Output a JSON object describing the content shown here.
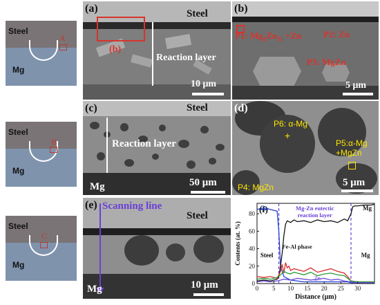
{
  "schematics": [
    {
      "steel": "Steel",
      "mg": "Mg",
      "point": "A"
    },
    {
      "steel": "Steel",
      "mg": "Mg",
      "point": "B"
    },
    {
      "steel": "Steel",
      "mg": "Mg",
      "point": "C"
    }
  ],
  "panel_a": {
    "label": "(a)",
    "steel": "Steel",
    "inset": "(b)",
    "layer": "Reaction layer",
    "scale": "10 μm"
  },
  "panel_b": {
    "label": "(b)",
    "p1": "P1: Mg",
    "p1_sub": "2",
    "p1_mid": "Zn",
    "p1_sub2": "11",
    "p1_end": " +Zn",
    "p2": "P2: Zn",
    "p3": "P3: MgZn",
    "scale": "5 μm"
  },
  "panel_c": {
    "label": "(c)",
    "steel": "Steel",
    "layer": "Reaction layer",
    "mg": "Mg",
    "scale": "50 μm"
  },
  "panel_d": {
    "label": "(d)",
    "p6": "P6: α-Mg",
    "p5a": "P5:α-Mg",
    "p5b": "+MgZn",
    "p4": "P4: MgZn",
    "scale": "5 μm"
  },
  "panel_e": {
    "label": "(e)",
    "scan": "Scanning line",
    "steel": "Steel",
    "mg": "Mg",
    "scale": "10 μm"
  },
  "panel_f": {
    "label": "(f)",
    "fe_label": "Fe",
    "eutectic_line1": "Mg-Zn eutectic",
    "eutectic_line2": "reaction layer",
    "mg_label_top": "Mg",
    "steel_label": "Steel",
    "mg_label_right": "Mg",
    "feal_label": "Fe-Al phase",
    "zn_label": "Zn",
    "xlabel": "Distance (μm)",
    "ylabel": "Contents (at. %)",
    "xticks": [
      "0",
      "5",
      "10",
      "15",
      "20",
      "25",
      "30"
    ],
    "yticks": [
      "0",
      "20",
      "40",
      "60",
      "80"
    ]
  },
  "chart_data": {
    "type": "line",
    "xlabel": "Distance (μm)",
    "ylabel": "Contents (at. %)",
    "xlim": [
      0,
      35
    ],
    "ylim": [
      0,
      92
    ],
    "boundaries_x": [
      6.5,
      28
    ],
    "series": [
      {
        "name": "Fe",
        "color": "#1f3fd6",
        "x": [
          0,
          1,
          2,
          3,
          4,
          5,
          6,
          6.5,
          7,
          8,
          9,
          10,
          12,
          14,
          16,
          18,
          20,
          22,
          24,
          26,
          27,
          28,
          30,
          32,
          34,
          35
        ],
        "y": [
          85,
          86,
          84,
          86,
          85,
          84,
          83,
          60,
          20,
          8,
          6,
          4,
          3,
          2,
          2,
          2,
          2,
          2,
          2,
          2,
          2,
          1,
          1,
          1,
          1,
          1
        ]
      },
      {
        "name": "",
        "color": "#111111",
        "x": [
          0,
          2,
          4,
          6,
          6.5,
          7,
          7.5,
          8,
          8.5,
          9,
          10,
          11,
          12,
          14,
          16,
          18,
          20,
          22,
          24,
          26,
          27,
          28,
          28.5,
          29,
          30,
          32,
          34,
          35
        ],
        "y": [
          3,
          4,
          3,
          5,
          8,
          20,
          35,
          55,
          68,
          72,
          70,
          73,
          71,
          72,
          70,
          73,
          71,
          72,
          70,
          74,
          72,
          80,
          88,
          89,
          89,
          90,
          90,
          91
        ]
      },
      {
        "name": "",
        "color": "#d62a2a",
        "x": [
          0,
          2,
          4,
          6,
          7,
          7.5,
          8,
          8.5,
          9,
          9.5,
          10,
          11,
          12,
          14,
          16,
          18,
          20,
          22,
          24,
          26,
          27,
          28,
          30,
          32,
          35
        ],
        "y": [
          8,
          7,
          8,
          6,
          14,
          22,
          12,
          24,
          18,
          20,
          15,
          17,
          16,
          14,
          18,
          13,
          15,
          17,
          14,
          12,
          8,
          3,
          2,
          2,
          2
        ]
      },
      {
        "name": "",
        "color": "#2a9d3a",
        "x": [
          0,
          2,
          4,
          6,
          7,
          8,
          9,
          10,
          11,
          12,
          14,
          16,
          18,
          20,
          22,
          24,
          26,
          27,
          28,
          30,
          32,
          35
        ],
        "y": [
          5,
          6,
          5,
          7,
          10,
          14,
          12,
          11,
          13,
          12,
          10,
          13,
          9,
          11,
          12,
          10,
          9,
          6,
          3,
          2,
          2,
          2
        ]
      },
      {
        "name": "Zn",
        "color": "#6b4fd6",
        "x": [
          0,
          2,
          4,
          6,
          7,
          8,
          10,
          12,
          14,
          16,
          18,
          20,
          22,
          24,
          26,
          28,
          30,
          35
        ],
        "y": [
          2,
          3,
          2,
          3,
          4,
          5,
          4,
          6,
          5,
          4,
          5,
          6,
          4,
          5,
          3,
          2,
          1,
          1
        ]
      }
    ]
  }
}
